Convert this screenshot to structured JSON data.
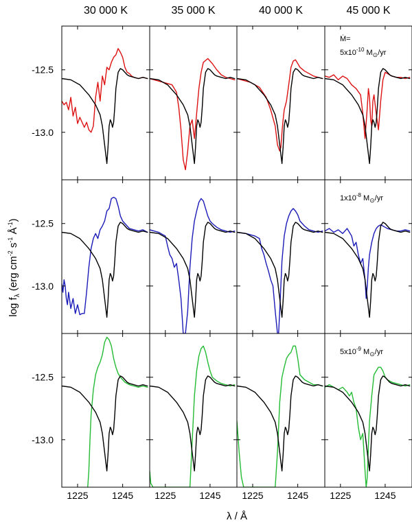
{
  "chart_data": {
    "type": "line",
    "column_titles": [
      "30 000 K",
      "35 000 K",
      "40 000 K",
      "45 000 K"
    ],
    "row_labels": [
      {
        "pre": "Ṁ=",
        "mant": "5x10",
        "exp": "-10",
        "unit": " M",
        "sun": "⊙",
        "tail": "/yr"
      },
      {
        "pre": "",
        "mant": "1x10",
        "exp": "-8",
        "unit": " M",
        "sun": "⊙",
        "tail": "/yr"
      },
      {
        "pre": "",
        "mant": "5x10",
        "exp": "-9",
        "unit": " M",
        "sun": "⊙",
        "tail": "/yr"
      }
    ],
    "ylabel": {
      "text": "log f",
      "sub": "λ",
      "unit": " (erg cm",
      "e1": "-2",
      "s": " s",
      "e2": "-1",
      "A": " Å",
      "e3": "-1",
      "close": ")"
    },
    "xlabel": "λ / Å",
    "xlim": [
      1218,
      1257
    ],
    "ylim": [
      -13.38,
      -12.15
    ],
    "xticks": [
      1225,
      1245
    ],
    "yticks": [
      -13.0,
      -12.5
    ],
    "xtick_labels": [
      "1225",
      "1245"
    ],
    "ytick_labels": [
      "-13.0",
      "-12.5"
    ],
    "series_colors": [
      "#dd1111",
      "#1a1ab8",
      "#22bb33"
    ],
    "observed": {
      "name": "",
      "color": "#000000",
      "x": [
        1218,
        1222,
        1226,
        1230,
        1233,
        1235,
        1236,
        1237,
        1238,
        1238.5,
        1239,
        1239.5,
        1240,
        1240.5,
        1241,
        1241.5,
        1242,
        1243,
        1244,
        1245,
        1246,
        1247,
        1248,
        1250,
        1252,
        1254,
        1256
      ],
      "y": [
        -12.57,
        -12.58,
        -12.62,
        -12.7,
        -12.78,
        -12.86,
        -12.95,
        -13.1,
        -13.25,
        -13.12,
        -12.95,
        -12.9,
        -12.92,
        -12.96,
        -12.92,
        -12.8,
        -12.65,
        -12.52,
        -12.49,
        -12.5,
        -12.52,
        -12.54,
        -12.55,
        -12.56,
        -12.57,
        -12.56,
        -12.57
      ]
    },
    "panels": [
      [
        {
          "x": [
            1218,
            1219,
            1220,
            1221,
            1222,
            1223,
            1224,
            1225,
            1226,
            1227,
            1228,
            1229,
            1230,
            1231,
            1232,
            1233,
            1234,
            1235,
            1236,
            1237,
            1238,
            1239,
            1240,
            1241,
            1242,
            1243,
            1244,
            1245,
            1246,
            1247,
            1248,
            1249,
            1250,
            1252,
            1254,
            1256
          ],
          "y": [
            -12.75,
            -12.78,
            -12.76,
            -12.82,
            -12.72,
            -12.87,
            -12.8,
            -12.93,
            -12.88,
            -12.92,
            -12.96,
            -12.92,
            -12.98,
            -13.0,
            -12.95,
            -12.72,
            -12.6,
            -12.75,
            -12.55,
            -12.62,
            -12.48,
            -12.5,
            -12.44,
            -12.4,
            -12.38,
            -12.33,
            -12.36,
            -12.4,
            -12.48,
            -12.52,
            -12.53,
            -12.55,
            -12.56,
            -12.57,
            -12.56,
            -12.57
          ]
        },
        {
          "x": [
            1218,
            1224,
            1228,
            1230,
            1231,
            1232,
            1233,
            1234,
            1235,
            1236,
            1237,
            1238,
            1239,
            1240,
            1241,
            1242,
            1244,
            1246,
            1248,
            1250,
            1252,
            1254,
            1256
          ],
          "y": [
            -12.57,
            -12.6,
            -12.62,
            -12.68,
            -12.8,
            -12.98,
            -13.22,
            -13.3,
            -13.15,
            -12.95,
            -12.9,
            -13.05,
            -12.85,
            -12.65,
            -12.52,
            -12.44,
            -12.41,
            -12.45,
            -12.5,
            -12.54,
            -12.56,
            -12.57,
            -12.58
          ]
        },
        {
          "x": [
            1218,
            1224,
            1228,
            1231,
            1233,
            1235,
            1236,
            1237,
            1237.5,
            1238,
            1238.5,
            1239,
            1240,
            1241,
            1242,
            1243,
            1244,
            1245,
            1246,
            1248,
            1250,
            1252,
            1254,
            1256
          ],
          "y": [
            -12.57,
            -12.6,
            -12.64,
            -12.72,
            -12.82,
            -12.95,
            -13.1,
            -13.15,
            -13.12,
            -13.0,
            -12.9,
            -12.82,
            -12.75,
            -12.62,
            -12.48,
            -12.43,
            -12.42,
            -12.45,
            -12.48,
            -12.51,
            -12.53,
            -12.55,
            -12.56,
            -12.57
          ]
        },
        {
          "x": [
            1218,
            1220,
            1222,
            1224,
            1226,
            1228,
            1230,
            1232,
            1234,
            1235,
            1236,
            1237,
            1237.5,
            1238,
            1238.5,
            1239,
            1239.5,
            1240,
            1241,
            1242,
            1243,
            1244,
            1245,
            1246,
            1248,
            1250,
            1252,
            1254,
            1256
          ],
          "y": [
            -12.55,
            -12.56,
            -12.54,
            -12.58,
            -12.55,
            -12.57,
            -12.62,
            -12.65,
            -12.7,
            -12.85,
            -13.05,
            -12.8,
            -12.65,
            -12.72,
            -12.9,
            -12.95,
            -12.75,
            -12.7,
            -12.85,
            -12.98,
            -12.75,
            -12.58,
            -12.52,
            -12.53,
            -12.55,
            -12.56,
            -12.56,
            -12.57,
            -12.56
          ]
        }
      ],
      [
        {
          "x": [
            1218,
            1218.5,
            1219,
            1219.5,
            1220,
            1220.5,
            1221,
            1222,
            1223,
            1224,
            1225,
            1226,
            1227,
            1228,
            1229,
            1230,
            1231,
            1232,
            1233,
            1234,
            1235,
            1236,
            1237,
            1238,
            1239,
            1240,
            1241,
            1242,
            1243,
            1244,
            1245,
            1246,
            1247,
            1248,
            1250,
            1252,
            1254,
            1256
          ],
          "y": [
            -12.98,
            -13.05,
            -12.95,
            -13.0,
            -13.1,
            -13.15,
            -13.05,
            -13.18,
            -13.1,
            -13.22,
            -13.15,
            -13.23,
            -13.22,
            -13.22,
            -13.05,
            -12.85,
            -12.7,
            -12.62,
            -12.58,
            -12.62,
            -12.55,
            -12.52,
            -12.48,
            -12.4,
            -12.38,
            -12.3,
            -12.29,
            -12.3,
            -12.36,
            -12.44,
            -12.48,
            -12.5,
            -12.52,
            -12.54,
            -12.55,
            -12.56,
            -12.55,
            -12.57
          ]
        },
        {
          "x": [
            1218,
            1222,
            1225,
            1226,
            1227,
            1228,
            1229,
            1230,
            1231,
            1232,
            1233,
            1234,
            1235,
            1236,
            1237,
            1238,
            1239,
            1240,
            1241,
            1242,
            1243,
            1244,
            1245,
            1246,
            1248,
            1250,
            1252,
            1254,
            1256
          ],
          "y": [
            -12.55,
            -12.57,
            -12.6,
            -12.68,
            -12.75,
            -12.78,
            -12.85,
            -12.82,
            -12.95,
            -13.1,
            -13.38,
            -13.38,
            -13.2,
            -12.85,
            -12.62,
            -12.48,
            -12.4,
            -12.33,
            -12.3,
            -12.32,
            -12.38,
            -12.44,
            -12.48,
            -12.5,
            -12.53,
            -12.55,
            -12.56,
            -12.57,
            -12.56
          ]
        },
        {
          "x": [
            1218,
            1222,
            1226,
            1228,
            1229,
            1230,
            1231,
            1232,
            1233,
            1234,
            1235,
            1236,
            1236.5,
            1237,
            1237.5,
            1238,
            1239,
            1240,
            1241,
            1242,
            1243,
            1244,
            1245,
            1246,
            1248,
            1250,
            1252,
            1254,
            1256
          ],
          "y": [
            -12.57,
            -12.58,
            -12.6,
            -12.62,
            -12.7,
            -12.75,
            -12.82,
            -12.88,
            -12.95,
            -13.0,
            -13.2,
            -13.38,
            -13.38,
            -13.2,
            -13.0,
            -12.8,
            -12.6,
            -12.5,
            -12.44,
            -12.4,
            -12.38,
            -12.4,
            -12.43,
            -12.48,
            -12.52,
            -12.55,
            -12.56,
            -12.57,
            -12.56
          ]
        },
        {
          "x": [
            1218,
            1220,
            1222,
            1224,
            1226,
            1228,
            1229,
            1230,
            1231,
            1232,
            1233,
            1234,
            1235,
            1236,
            1236.5,
            1237,
            1237.5,
            1238,
            1239,
            1240,
            1241,
            1242,
            1243,
            1244,
            1245,
            1246,
            1248,
            1250,
            1252,
            1254,
            1256
          ],
          "y": [
            -12.56,
            -12.54,
            -12.57,
            -12.55,
            -12.58,
            -12.54,
            -12.57,
            -12.6,
            -12.68,
            -12.65,
            -12.75,
            -12.82,
            -12.78,
            -12.95,
            -13.1,
            -13.0,
            -12.85,
            -12.75,
            -12.65,
            -12.58,
            -12.54,
            -12.52,
            -12.51,
            -12.52,
            -12.53,
            -12.54,
            -12.55,
            -12.56,
            -12.56,
            -12.55,
            -12.56
          ]
        }
      ],
      [
        {
          "x": [
            1229.5,
            1230,
            1230.5,
            1231,
            1232,
            1233,
            1234,
            1235,
            1236,
            1237,
            1238,
            1239,
            1240,
            1241,
            1242,
            1243,
            1244,
            1245,
            1246,
            1247,
            1248,
            1250,
            1252,
            1254,
            1256
          ],
          "y": [
            -13.38,
            -13.25,
            -13.0,
            -12.8,
            -12.6,
            -12.48,
            -12.42,
            -12.38,
            -12.32,
            -12.22,
            -12.18,
            -12.2,
            -12.25,
            -12.35,
            -12.42,
            -12.47,
            -12.5,
            -12.52,
            -12.54,
            -12.55,
            -12.56,
            -12.57,
            -12.58,
            -12.57,
            -12.58
          ]
        },
        {
          "x": [
            1218,
            1218.5,
            1219.5,
            1222,
            1224,
            1226,
            1228,
            1230,
            1232,
            1234,
            1236,
            1238,
            1239,
            1240,
            1241,
            1242,
            1243,
            1244,
            1245,
            1246,
            1248,
            1250,
            1252,
            1254,
            1256
          ],
          "y": [
            -13.25,
            -13.35,
            -13.38,
            -13.38,
            -13.38,
            -13.38,
            -13.38,
            -13.38,
            -13.38,
            -13.38,
            -13.38,
            -12.65,
            -12.45,
            -12.33,
            -12.27,
            -12.25,
            -12.3,
            -12.38,
            -12.45,
            -12.5,
            -12.53,
            -12.55,
            -12.56,
            -12.57,
            -12.56
          ]
        },
        {
          "x": [
            1218,
            1219,
            1220,
            1221,
            1222,
            1223,
            1224,
            1226,
            1228,
            1230,
            1232,
            1234,
            1235,
            1236,
            1237,
            1238,
            1239,
            1240,
            1241,
            1242,
            1243,
            1244,
            1245,
            1246,
            1248,
            1250,
            1252,
            1254,
            1256
          ],
          "y": [
            -12.85,
            -13.1,
            -13.3,
            -13.38,
            -13.38,
            -13.38,
            -13.38,
            -13.38,
            -13.38,
            -13.38,
            -13.38,
            -13.38,
            -13.38,
            -13.1,
            -12.7,
            -12.5,
            -12.42,
            -12.35,
            -12.32,
            -12.3,
            -12.25,
            -12.25,
            -12.35,
            -12.48,
            -12.52,
            -12.54,
            -12.56,
            -12.56,
            -12.57
          ]
        },
        {
          "x": [
            1218,
            1220,
            1222,
            1224,
            1226,
            1228,
            1229,
            1230,
            1231,
            1232,
            1233,
            1234,
            1235,
            1236,
            1236.5,
            1237,
            1237.5,
            1238,
            1239,
            1240,
            1241,
            1242,
            1243,
            1244,
            1245,
            1246,
            1248,
            1250,
            1252,
            1254,
            1256
          ],
          "y": [
            -12.58,
            -12.56,
            -12.58,
            -12.6,
            -12.58,
            -12.62,
            -12.65,
            -12.62,
            -12.7,
            -12.75,
            -12.9,
            -13.0,
            -12.95,
            -13.25,
            -13.38,
            -13.3,
            -13.05,
            -12.85,
            -12.65,
            -12.48,
            -12.45,
            -12.42,
            -12.42,
            -12.45,
            -12.5,
            -12.52,
            -12.54,
            -12.55,
            -12.56,
            -12.57,
            -12.56
          ]
        }
      ]
    ]
  }
}
